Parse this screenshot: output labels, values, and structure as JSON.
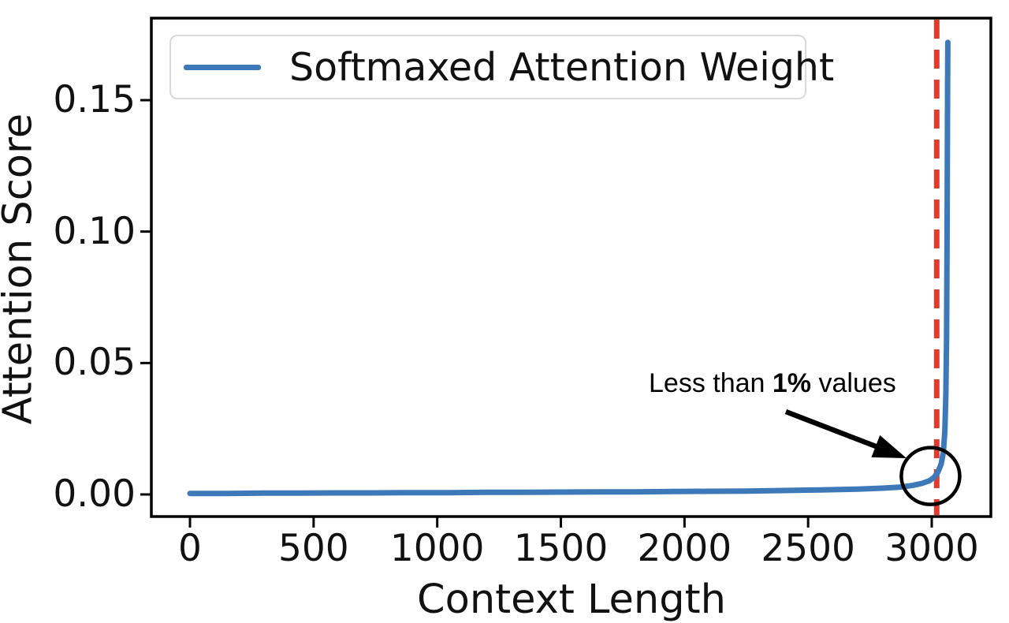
{
  "chart_data": {
    "type": "line",
    "title": "",
    "xlabel": "Context Length",
    "ylabel": "Attention Score",
    "x_ticks": [
      0,
      500,
      1000,
      1500,
      2000,
      2500,
      3000
    ],
    "y_ticks": [
      0,
      0.05,
      0.1,
      0.15
    ],
    "y_tick_labels": [
      "0.00",
      "0.05",
      "0.10",
      "0.15"
    ],
    "xlim": [
      -155,
      3235
    ],
    "ylim": [
      -0.0086,
      0.181
    ],
    "grid": false,
    "legend_position": "upper-left",
    "series": [
      {
        "name": "Softmaxed Attention Weight",
        "color": "#3d79b8",
        "points": [
          [
            0,
            0.0004
          ],
          [
            150,
            0.0004
          ],
          [
            300,
            0.0005
          ],
          [
            450,
            0.0005
          ],
          [
            600,
            0.0006
          ],
          [
            750,
            0.0006
          ],
          [
            900,
            0.0007
          ],
          [
            1050,
            0.0007
          ],
          [
            1200,
            0.0008
          ],
          [
            1350,
            0.0008
          ],
          [
            1500,
            0.0009
          ],
          [
            1650,
            0.001
          ],
          [
            1800,
            0.001
          ],
          [
            1950,
            0.0011
          ],
          [
            2100,
            0.0012
          ],
          [
            2250,
            0.0013
          ],
          [
            2400,
            0.0015
          ],
          [
            2550,
            0.0017
          ],
          [
            2700,
            0.002
          ],
          [
            2800,
            0.0024
          ],
          [
            2870,
            0.0028
          ],
          [
            2920,
            0.0034
          ],
          [
            2960,
            0.0042
          ],
          [
            2990,
            0.0052
          ],
          [
            3010,
            0.0065
          ],
          [
            3025,
            0.0085
          ],
          [
            3038,
            0.0115
          ],
          [
            3047,
            0.016
          ],
          [
            3053,
            0.024
          ],
          [
            3057,
            0.038
          ],
          [
            3060,
            0.06
          ],
          [
            3062,
            0.095
          ],
          [
            3063,
            0.13
          ],
          [
            3064,
            0.155
          ],
          [
            3065,
            0.172
          ]
        ]
      }
    ],
    "vline": {
      "x": 3020,
      "color": "#e23b2e",
      "style": "dashed"
    },
    "annotation_circle": {
      "center_x": 2995,
      "center_y": 0.007,
      "radius_px": 37
    },
    "annotation": {
      "prefix": "Less than ",
      "bold": "1%",
      "suffix": " values",
      "arrow_from_x": 2410,
      "arrow_from_y": 0.0315,
      "arrow_to_x": 2898,
      "arrow_to_y": 0.0138
    },
    "legend_entries": [
      {
        "label": "Softmaxed Attention Weight"
      }
    ],
    "axis_color": "#000000"
  }
}
